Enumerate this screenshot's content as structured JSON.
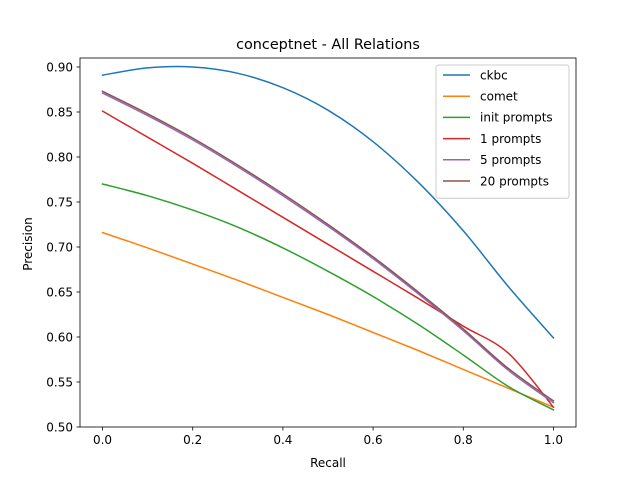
{
  "chart_data": {
    "type": "line",
    "title": "conceptnet - All Relations",
    "xlabel": "Recall",
    "ylabel": "Precision",
    "xlim": [
      -0.05,
      1.05
    ],
    "ylim": [
      0.5,
      0.91
    ],
    "xticks": [
      0.0,
      0.2,
      0.4,
      0.6,
      0.8,
      1.0
    ],
    "xtick_labels": [
      "0.0",
      "0.2",
      "0.4",
      "0.6",
      "0.8",
      "1.0"
    ],
    "yticks": [
      0.5,
      0.55,
      0.6,
      0.65,
      0.7,
      0.75,
      0.8,
      0.85,
      0.9
    ],
    "ytick_labels": [
      "0.50",
      "0.55",
      "0.60",
      "0.65",
      "0.70",
      "0.75",
      "0.80",
      "0.85",
      "0.90"
    ],
    "grid": false,
    "legend_position": "top-right",
    "x": [
      0.0,
      0.1,
      0.2,
      0.3,
      0.4,
      0.5,
      0.6,
      0.7,
      0.8,
      0.9,
      1.0
    ],
    "series": [
      {
        "name": "ckbc",
        "color": "#1f77b4",
        "values": [
          0.891,
          0.899,
          0.9,
          0.893,
          0.877,
          0.852,
          0.817,
          0.772,
          0.718,
          0.656,
          0.599
        ]
      },
      {
        "name": "comet",
        "color": "#ff7f0e",
        "values": [
          0.716,
          0.699,
          0.681,
          0.663,
          0.644,
          0.625,
          0.605,
          0.585,
          0.564,
          0.543,
          0.522
        ]
      },
      {
        "name": "init prompts",
        "color": "#2ca02c",
        "values": [
          0.77,
          0.757,
          0.741,
          0.722,
          0.699,
          0.673,
          0.645,
          0.614,
          0.58,
          0.545,
          0.519
        ]
      },
      {
        "name": "1 prompts",
        "color": "#d62728",
        "values": [
          0.851,
          0.822,
          0.793,
          0.763,
          0.733,
          0.703,
          0.673,
          0.643,
          0.612,
          0.582,
          0.522
        ]
      },
      {
        "name": "5 prompts",
        "color": "#9467bd",
        "values": [
          0.871,
          0.846,
          0.819,
          0.789,
          0.757,
          0.723,
          0.687,
          0.648,
          0.607,
          0.563,
          0.527
        ]
      },
      {
        "name": "20 prompts",
        "color": "#8c564b",
        "values": [
          0.873,
          0.848,
          0.821,
          0.791,
          0.759,
          0.725,
          0.689,
          0.65,
          0.609,
          0.565,
          0.529
        ]
      }
    ]
  }
}
